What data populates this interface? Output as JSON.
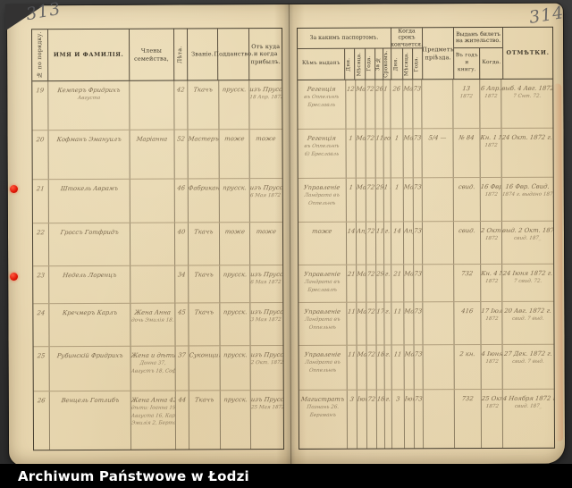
{
  "scan": {
    "left_page_number": "313",
    "right_page_number": "314",
    "caption": "Archiwum Państwowe w Łodzi"
  },
  "colors": {
    "background": "#343434",
    "paper": "#e6d4ac",
    "caption_bar": "#000000",
    "caption_text": "#ffffff",
    "marker_red": "#e01505",
    "pencil_handwriting": "#604e34",
    "table_line": "#3f382b"
  },
  "left_table": {
    "columns": {
      "number": "№ по порядку.",
      "name": "ИМЯ И ФАМИЛІЯ.",
      "members": "Члены семейства,",
      "age": "Лѣта.",
      "rank": "Званіе.",
      "citizenship": "Подданство.",
      "origin": "Отъ куда и когда прибылъ."
    },
    "rows": [
      {
        "num": "19",
        "name": [
          "Кемперъ Фридрихъ",
          "Августа"
        ],
        "members": [],
        "age": "42",
        "rank": "Ткачъ",
        "citizenship": "прусск.",
        "origin": [
          "изъ Пруссіи",
          "18 Апр. 1872 г."
        ]
      },
      {
        "num": "20",
        "name": [
          "Кофманъ Эмануилъ"
        ],
        "members": [
          "Маріанна"
        ],
        "age": "52",
        "rank": "Мастеръ",
        "citizenship": "тоже",
        "origin": [
          "тоже"
        ]
      },
      {
        "num": "21",
        "name": [
          "Штокель Аврамъ"
        ],
        "members": [],
        "age": "46",
        "rank": "Фабрикантъ",
        "citizenship": "прусск.",
        "origin": [
          "изъ Пруссіи",
          "6 Мая 1872 г."
        ]
      },
      {
        "num": "22",
        "name": [
          "Гроссъ Готфридъ"
        ],
        "members": [],
        "age": "40",
        "rank": "Ткачъ",
        "citizenship": "тоже",
        "origin": [
          "тоже"
        ]
      },
      {
        "num": "23",
        "name": [
          "Недель Лоренцъ"
        ],
        "members": [],
        "age": "34",
        "rank": "Ткачъ",
        "citizenship": "прусск.",
        "origin": [
          "изъ Пруссіи",
          "6 Мая 1872 г."
        ]
      },
      {
        "num": "24",
        "name": [
          "Кречмеръ Карлъ"
        ],
        "members": [
          "Жена Анна",
          "дочь Эмилія 18."
        ],
        "age": "45",
        "rank": "Ткачъ",
        "citizenship": "прусск.",
        "origin": [
          "изъ Пруссіи",
          "3 Мая 1872 г."
        ]
      },
      {
        "num": "25",
        "name": [
          "Рубинскій Фридрихъ"
        ],
        "members": [
          "Жена и дѣти:",
          "Донна 37,",
          "Августъ 18, Софія 14."
        ],
        "age": "37",
        "rank": "Суконщикъ",
        "citizenship": "прусск.",
        "origin": [
          "изъ Пруссіи",
          "2 Окт. 1872 г."
        ]
      },
      {
        "num": "26",
        "name": [
          "Венцель Готлибъ"
        ],
        "members": [
          "Жена Анна 42,",
          "дѣти: Іоанна 19,",
          "Августа 16, Карлъ 8,",
          "Эмилія 2, Берта 1."
        ],
        "age": "44",
        "rank": "Ткачъ",
        "citizenship": "прусск.",
        "origin": [
          "изъ Пруссіи",
          "25 Мая 1872 г."
        ]
      }
    ]
  },
  "right_table": {
    "groups": {
      "passport": "За какимъ паспортомъ.",
      "passport_cols": [
        "Кѣмъ выданъ",
        "Дня.",
        "Мѣсяца.",
        "Года.",
        "За №",
        "Срокомъ."
      ],
      "expiry": "Когда срокъ кончается.",
      "expiry_cols": [
        "Дня.",
        "Мѣсяца.",
        "Года."
      ],
      "purpose": "Предметъ пріѣзда.",
      "ticket": "Выданъ билетъ на жительство.",
      "ticket_cols": [
        "Въ годъ и книгу.",
        "Когда."
      ],
      "notes": "ОТМѢТКИ."
    },
    "rows": [
      {
        "issued_by": [
          "Регенція",
          "въ Оппельнѣ",
          "Бреславль"
        ],
        "day": "12",
        "month": "Мая",
        "year": "72",
        "no": "26",
        "term": "1 г.",
        "end_day": "26",
        "end_month": "Мая",
        "end_year": "73",
        "purpose": "",
        "ticket": [
          "13",
          "1872"
        ],
        "when": [
          "6 Апр.",
          "1872"
        ],
        "notes": [
          "выб. 4 Авг. 1872 г.",
          "7 Снт. 72."
        ]
      },
      {
        "issued_by": [
          "Регенція",
          "въ Оппельнѣ",
          "6) Бреславль"
        ],
        "day": "1",
        "month": "Мая",
        "year": "72",
        "no": "117",
        "term": "год.",
        "end_day": "1",
        "end_month": "Мая",
        "end_year": "73",
        "purpose": "5/4 —",
        "ticket": [
          "№ 84"
        ],
        "when": [
          "Кн. 1 Мая",
          "1872"
        ],
        "notes": [
          "24 Окт. 1872 г."
        ]
      },
      {
        "issued_by": [
          "Управленіе",
          "Ландрата въ",
          "Оппельнѣ"
        ],
        "day": "1",
        "month": "Мая",
        "year": "72",
        "no": "29",
        "term": "1 г.",
        "end_day": "1",
        "end_month": "Мая",
        "end_year": "73",
        "purpose": "",
        "ticket": [
          "свид."
        ],
        "when": [
          "16 Фвр.",
          "1872"
        ],
        "notes": [
          "16 Фвр. Свид.",
          "1874 г. выдано 187_"
        ]
      },
      {
        "issued_by": [
          "тоже"
        ],
        "day": "14",
        "month": "Апр.",
        "year": "72",
        "no": "117",
        "term": "г.",
        "end_day": "14",
        "end_month": "Апр.",
        "end_year": "73",
        "purpose": "",
        "ticket": [
          "свид."
        ],
        "when": [
          "2 Окт.",
          "1872"
        ],
        "notes": [
          "выд. 2 Окт. 1872 г.",
          "свид. 187_"
        ]
      },
      {
        "issued_by": [
          "Управленіе",
          "Ландрата въ",
          "Бреславлѣ"
        ],
        "day": "21",
        "month": "Мая",
        "year": "72",
        "no": "297",
        "term": "г.",
        "end_day": "21",
        "end_month": "Мая",
        "end_year": "73",
        "purpose": "",
        "ticket": [
          "732"
        ],
        "when": [
          "Кн. 4 Мая",
          "1872"
        ],
        "notes": [
          "24 Іюня 1872 г.",
          "7 свид. 72."
        ]
      },
      {
        "issued_by": [
          "Управленіе",
          "Ландрата въ",
          "Оппельнѣ"
        ],
        "day": "11",
        "month": "Мая",
        "year": "72",
        "no": "170",
        "term": "г.",
        "end_day": "11",
        "end_month": "Мая",
        "end_year": "73",
        "purpose": "",
        "ticket": [
          "416"
        ],
        "when": [
          "17 Іюля",
          "1872"
        ],
        "notes": [
          "20 Авг. 1872 г.",
          "свид. 7 выд."
        ]
      },
      {
        "issued_by": [
          "Управленіе",
          "Ландрата въ",
          "Оппельнѣ"
        ],
        "day": "11",
        "month": "Мая",
        "year": "72",
        "no": "188",
        "term": "г.",
        "end_day": "11",
        "end_month": "Мая",
        "end_year": "73",
        "purpose": "",
        "ticket": [
          "2 кн."
        ],
        "when": [
          "4 Іюня",
          "1872"
        ],
        "notes": [
          "27 Дек. 1872 г.",
          "свид. 7 выд."
        ]
      },
      {
        "issued_by": [
          "Магистратъ",
          "Познань 26.",
          "Бергманъ"
        ],
        "day": "3",
        "month": "Іюня",
        "year": "72",
        "no": "188",
        "term": "г.",
        "end_day": "3",
        "end_month": "Іюня",
        "end_year": "73",
        "purpose": "",
        "ticket": [
          "732"
        ],
        "when": [
          "25 Окт.",
          "1872"
        ],
        "notes": [
          "4 Ноября 1872 г.",
          "свид. 187_"
        ]
      }
    ]
  }
}
